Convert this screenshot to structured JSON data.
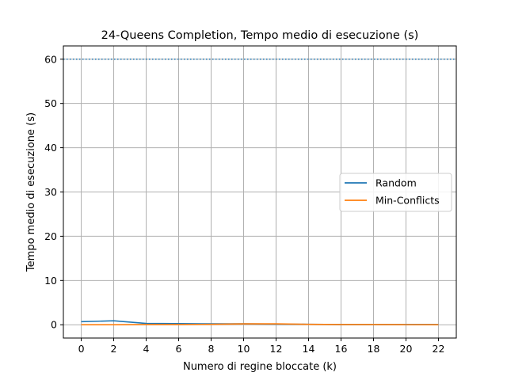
{
  "chart_data": {
    "type": "line",
    "title": "24-Queens Completion, Tempo medio di esecuzione (s)",
    "xlabel": "Numero di regine bloccate (k)",
    "ylabel": "Tempo medio di esecuzione (s)",
    "x": [
      0,
      2,
      4,
      6,
      8,
      10,
      12,
      14,
      16,
      18,
      20,
      22
    ],
    "xlim": [
      -1.1,
      23.1
    ],
    "ylim": [
      -3,
      63
    ],
    "xticks": [
      0,
      2,
      4,
      6,
      8,
      10,
      12,
      14,
      16,
      18,
      20,
      22
    ],
    "yticks": [
      0,
      10,
      20,
      30,
      40,
      50,
      60
    ],
    "grid": true,
    "legend_position": "center-right",
    "series": [
      {
        "name": "Random",
        "color": "#1f77b4",
        "values": [
          0.7,
          0.9,
          0.3,
          0.25,
          0.2,
          0.2,
          0.15,
          0.1,
          0.05,
          0.05,
          0.05,
          0.05
        ]
      },
      {
        "name": "Min-Conflicts",
        "color": "#ff7f0e",
        "values": [
          0.0,
          0.0,
          0.05,
          0.05,
          0.1,
          0.2,
          0.2,
          0.1,
          0.05,
          0.05,
          0.02,
          0.0
        ]
      }
    ],
    "reference_line": {
      "y": 60,
      "color": "#1f77b4",
      "style": "dotted"
    }
  }
}
